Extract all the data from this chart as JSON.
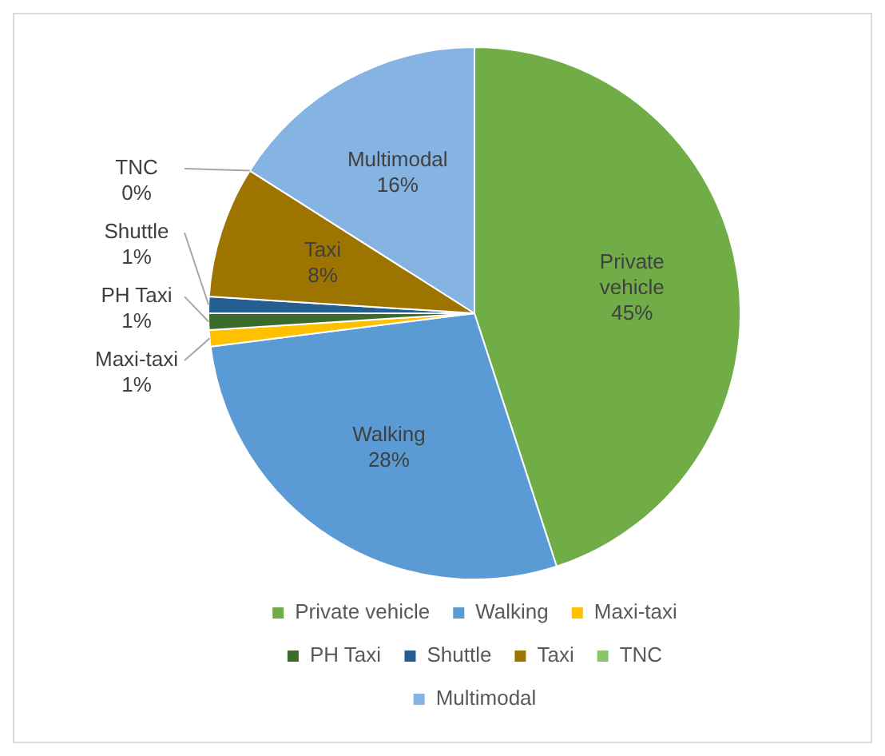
{
  "chart_data": {
    "type": "pie",
    "categories": [
      "Private vehicle",
      "Walking",
      "Maxi-taxi",
      "PH Taxi",
      "Shuttle",
      "Taxi",
      "TNC",
      "Multimodal"
    ],
    "values": [
      45,
      28,
      1,
      1,
      1,
      8,
      0,
      16
    ],
    "colors": [
      "#70ad47",
      "#5b9bd5",
      "#ffc000",
      "#3b6b2a",
      "#255e91",
      "#9e7400",
      "#8cc46a",
      "#85b3e2"
    ],
    "value_labels": [
      "45%",
      "28%",
      "1%",
      "1%",
      "1%",
      "8%",
      "0%",
      "16%"
    ],
    "legend": "bottom"
  }
}
